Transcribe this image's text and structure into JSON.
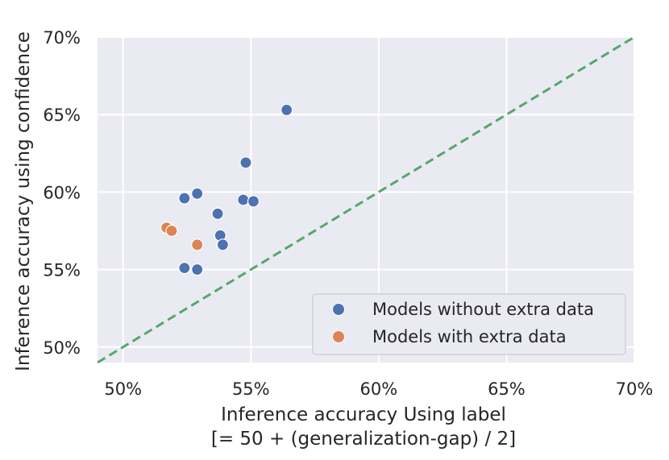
{
  "chart_data": {
    "type": "scatter",
    "xlabel_line1": "Inference accuracy Using label",
    "xlabel_line2": "[= 50 + (generalization-gap) / 2]",
    "ylabel": "Inference accuracy using confidence",
    "xlim": [
      49.0,
      70.0
    ],
    "ylim": [
      49.0,
      70.0
    ],
    "x_ticks": [
      50,
      55,
      60,
      65,
      70
    ],
    "y_ticks": [
      50,
      55,
      60,
      65,
      70
    ],
    "x_tick_labels": [
      "50%",
      "55%",
      "60%",
      "65%",
      "70%"
    ],
    "y_tick_labels": [
      "50%",
      "55%",
      "60%",
      "65%",
      "70%"
    ],
    "grid": true,
    "legend_position": "lower-right",
    "diagonal": {
      "from": [
        49.0,
        49.0
      ],
      "to": [
        70.0,
        70.0
      ],
      "style": "dashed",
      "color": "#55a868"
    },
    "series": [
      {
        "name": "Models without extra data",
        "color": "#4c72b0",
        "points": [
          {
            "x": 56.4,
            "y": 65.3
          },
          {
            "x": 54.8,
            "y": 61.9
          },
          {
            "x": 52.4,
            "y": 59.6
          },
          {
            "x": 52.9,
            "y": 59.9
          },
          {
            "x": 54.7,
            "y": 59.5
          },
          {
            "x": 55.1,
            "y": 59.4
          },
          {
            "x": 53.7,
            "y": 58.6
          },
          {
            "x": 53.8,
            "y": 57.2
          },
          {
            "x": 53.9,
            "y": 56.6
          },
          {
            "x": 52.4,
            "y": 55.1
          },
          {
            "x": 52.9,
            "y": 55.0
          }
        ]
      },
      {
        "name": "Models with extra data",
        "color": "#dd8452",
        "points": [
          {
            "x": 51.7,
            "y": 57.7
          },
          {
            "x": 51.9,
            "y": 57.5
          },
          {
            "x": 52.9,
            "y": 56.6
          }
        ]
      }
    ]
  }
}
